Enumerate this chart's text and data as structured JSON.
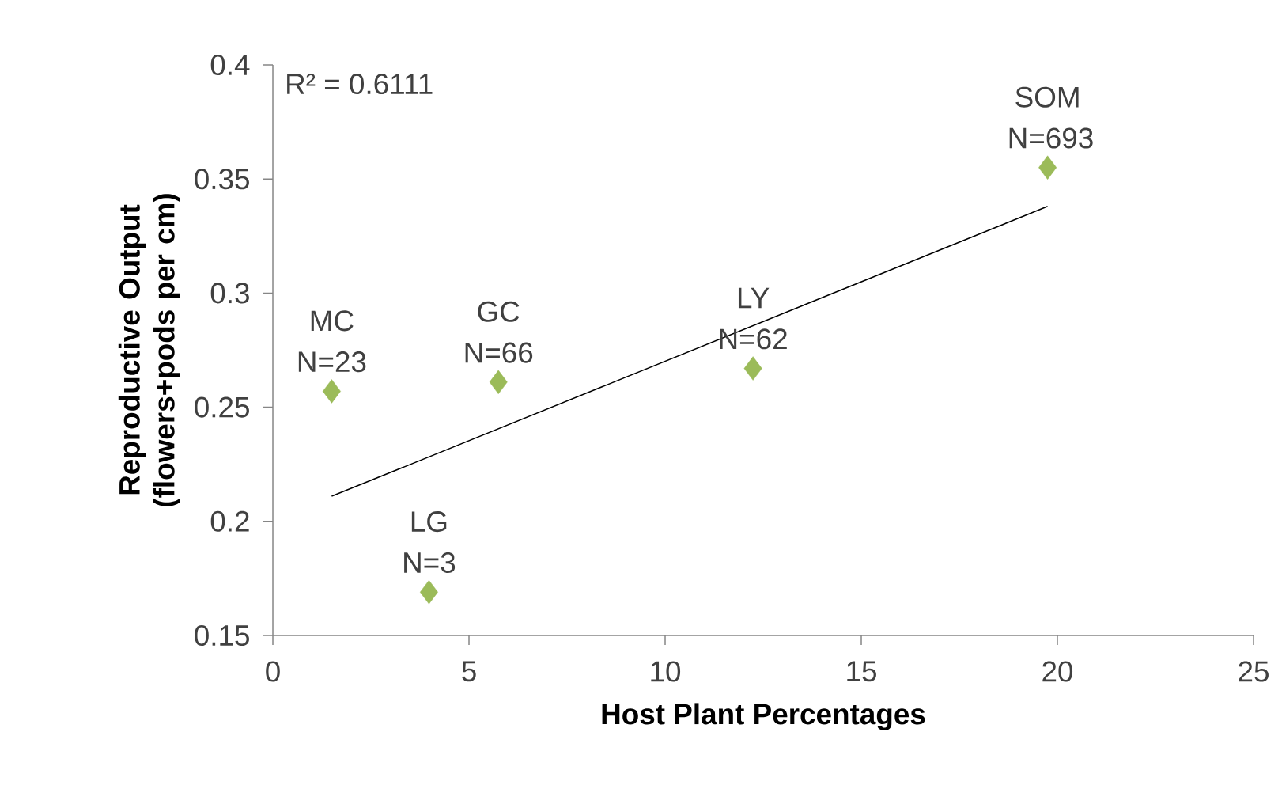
{
  "chart_data": {
    "type": "scatter",
    "xlabel": "Host Plant Percentages",
    "ylabel": "Reproductive Output (flowers+pods per cm)",
    "xlim": [
      0,
      25
    ],
    "xticks": [
      0,
      5,
      10,
      15,
      20,
      25
    ],
    "ylim": [
      0.15,
      0.4
    ],
    "yticks": [
      0.15,
      0.2,
      0.25,
      0.3,
      0.35,
      0.4
    ],
    "marker": "diamond",
    "series": [
      {
        "color": "#9bbb59",
        "x": [
          1.5,
          3.98,
          5.75,
          12.24,
          19.75
        ],
        "values": [
          0.257,
          0.169,
          0.261,
          0.267,
          0.355
        ]
      },
      {
        "type": "line",
        "color": "#000000",
        "marker": "none",
        "line_style": "solid",
        "x": [
          1.5,
          19.75
        ],
        "values": [
          0.211,
          0.338
        ]
      }
    ],
    "annotations": [
      "R² = 0.6111",
      {
        "text": "MC N=23",
        "x": 1.5,
        "y": 0.257
      },
      {
        "text": "LG N=3",
        "x": 3.98,
        "y": 0.169
      },
      {
        "text": "GC N=66",
        "x": 5.75,
        "y": 0.261
      },
      {
        "text": "LY N=62",
        "x": 12.24,
        "y": 0.267
      },
      {
        "text": "SOM N=693",
        "x": 19.75,
        "y": 0.355
      }
    ]
  }
}
